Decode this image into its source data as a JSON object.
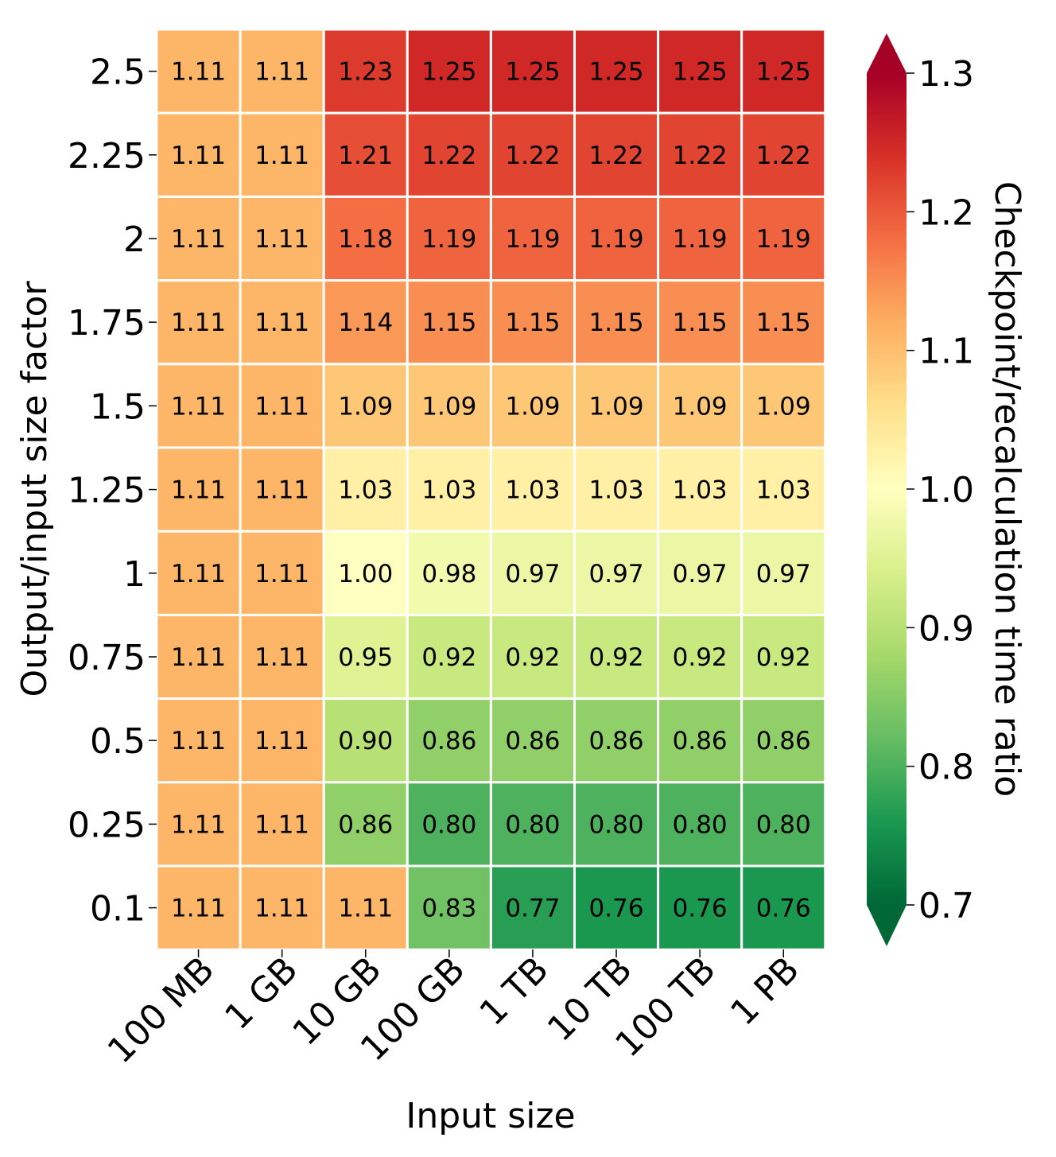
{
  "chart_data": {
    "type": "heatmap",
    "xlabel": "Input size",
    "ylabel": "Output/input size factor",
    "colorbar_label": "Checkpoint/recalculation time ratio",
    "colormap": "RdYlGn_r",
    "color_range": [
      0.7,
      1.3
    ],
    "colorbar_ticks": [
      "0.7",
      "0.8",
      "0.9",
      "1.0",
      "1.1",
      "1.2",
      "1.3"
    ],
    "colorbar_extend": "both",
    "x_categories": [
      "100 MB",
      "1 GB",
      "10 GB",
      "100 GB",
      "1 TB",
      "10 TB",
      "100 TB",
      "1 PB"
    ],
    "y_categories": [
      "2.5",
      "2.25",
      "2",
      "1.75",
      "1.5",
      "1.25",
      "1",
      "0.75",
      "0.5",
      "0.25",
      "0.1"
    ],
    "values": [
      [
        1.11,
        1.11,
        1.23,
        1.25,
        1.25,
        1.25,
        1.25,
        1.25
      ],
      [
        1.11,
        1.11,
        1.21,
        1.22,
        1.22,
        1.22,
        1.22,
        1.22
      ],
      [
        1.11,
        1.11,
        1.18,
        1.19,
        1.19,
        1.19,
        1.19,
        1.19
      ],
      [
        1.11,
        1.11,
        1.14,
        1.15,
        1.15,
        1.15,
        1.15,
        1.15
      ],
      [
        1.11,
        1.11,
        1.09,
        1.09,
        1.09,
        1.09,
        1.09,
        1.09
      ],
      [
        1.11,
        1.11,
        1.03,
        1.03,
        1.03,
        1.03,
        1.03,
        1.03
      ],
      [
        1.11,
        1.11,
        1.0,
        0.98,
        0.97,
        0.97,
        0.97,
        0.97
      ],
      [
        1.11,
        1.11,
        0.95,
        0.92,
        0.92,
        0.92,
        0.92,
        0.92
      ],
      [
        1.11,
        1.11,
        0.9,
        0.86,
        0.86,
        0.86,
        0.86,
        0.86
      ],
      [
        1.11,
        1.11,
        0.86,
        0.8,
        0.8,
        0.8,
        0.8,
        0.8
      ],
      [
        1.11,
        1.11,
        1.11,
        0.83,
        0.77,
        0.76,
        0.76,
        0.76
      ]
    ],
    "annotation_format": "2 decimals"
  }
}
